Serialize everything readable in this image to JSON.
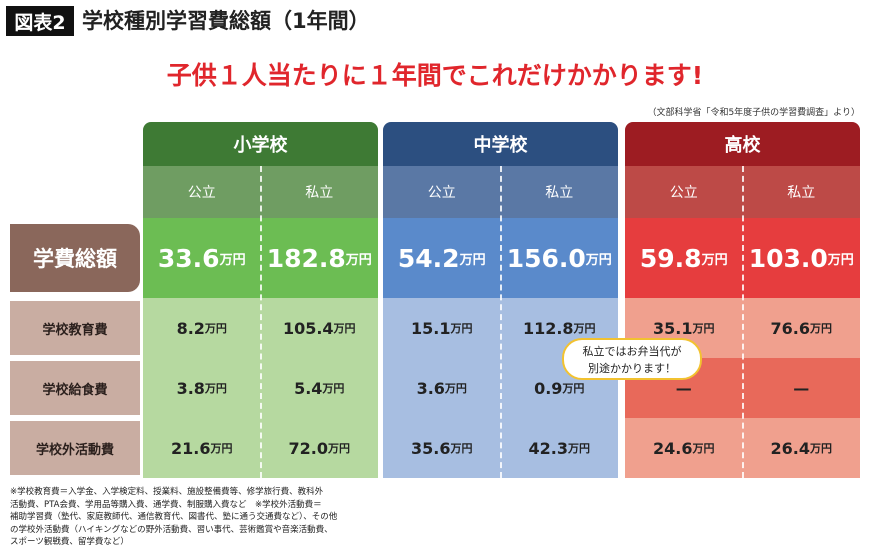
{
  "header": {
    "badge": "図表2",
    "title": "学校種別学習費総額（1年間）"
  },
  "headline": "子供１人当たりに１年間でこれだけかかります!",
  "source": "（文部科学省「令和5年度子供の学習費調査」より）",
  "table": {
    "groups": [
      {
        "name": "小学校",
        "types": [
          "公立",
          "私立"
        ]
      },
      {
        "name": "中学校",
        "types": [
          "公立",
          "私立"
        ]
      },
      {
        "name": "高校",
        "types": [
          "公立",
          "私立"
        ]
      }
    ],
    "rows": [
      {
        "label": "学費総額",
        "cells": [
          {
            "amount": "33.6",
            "unit": "万円"
          },
          {
            "amount": "182.8",
            "unit": "万円"
          },
          {
            "amount": "54.2",
            "unit": "万円"
          },
          {
            "amount": "156.0",
            "unit": "万円"
          },
          {
            "amount": "59.8",
            "unit": "万円"
          },
          {
            "amount": "103.0",
            "unit": "万円"
          }
        ]
      },
      {
        "label": "学校教育費",
        "cells": [
          {
            "amount": "8.2",
            "unit": "万円"
          },
          {
            "amount": "105.4",
            "unit": "万円"
          },
          {
            "amount": "15.1",
            "unit": "万円"
          },
          {
            "amount": "112.8",
            "unit": "万円"
          },
          {
            "amount": "35.1",
            "unit": "万円"
          },
          {
            "amount": "76.6",
            "unit": "万円"
          }
        ]
      },
      {
        "label": "学校給食費",
        "cells": [
          {
            "amount": "3.8",
            "unit": "万円"
          },
          {
            "amount": "5.4",
            "unit": "万円"
          },
          {
            "amount": "3.6",
            "unit": "万円"
          },
          {
            "amount": "0.9",
            "unit": "万円"
          },
          {
            "amount": "—"
          },
          {
            "amount": "—"
          }
        ]
      },
      {
        "label": "学校外活動費",
        "cells": [
          {
            "amount": "21.6",
            "unit": "万円"
          },
          {
            "amount": "72.0",
            "unit": "万円"
          },
          {
            "amount": "35.6",
            "unit": "万円"
          },
          {
            "amount": "42.3",
            "unit": "万円"
          },
          {
            "amount": "24.6",
            "unit": "万円"
          },
          {
            "amount": "26.4",
            "unit": "万円"
          }
        ]
      }
    ]
  },
  "callout": [
    "私立ではお弁当代が",
    "別途かかります！"
  ],
  "footnote": [
    "※学校教育費＝入学金、入学検定料、授業料、施設整備費等、修学旅行費、教科外",
    "活動費、PTA会費、学用品等購入費、通学費、制服購入費など　※学校外活動費＝",
    "補助学習費（塾代、家庭教師代、通信教育代、図書代、塾に通う交通費など）、その他",
    "の学校外活動費（ハイキングなどの野外活動費、習い事代、芸術鑑賞や音楽活動費、",
    "スポーツ観戦費、留学費など）"
  ]
}
